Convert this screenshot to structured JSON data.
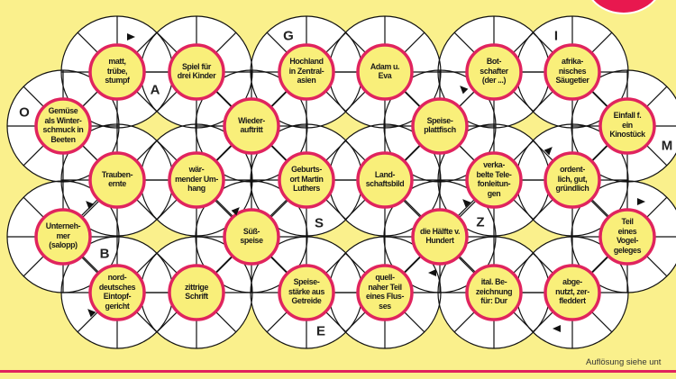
{
  "puzzle": {
    "type": "Wabenrätsel",
    "clues": [
      "matt,\ntrübe,\nstumpf",
      "Spiel für\ndrei Kinder",
      "Hochland\nin Zentral-\nasien",
      "Adam u.\nEva",
      "Bot-\nschafter\n(der ...)",
      "afrika-\nnisches\nSäugetier",
      "Gemüse\nals Winter-\nschmuck in\nBeeten",
      "Wieder-\nauftritt",
      "Speise-\nplattfisch",
      "Einfall f.\nein\nKinostück",
      "Trauben-\nernte",
      "wär-\nmender Um-\nhang",
      "Geburts-\nort Martin\nLuthers",
      "Land-\nschaftsbild",
      "verka-\nbelte Tele-\nfonleitun-\ngen",
      "ordent-\nlich, gut,\ngründlich",
      "Unterneh-\nmer\n(salopp)",
      "Süß-\nspeise",
      "die Hälfte v.\nHundert",
      "Teil\neines\nVogel-\ngeleges",
      "nord-\ndeutsches\nEintopf-\ngericht",
      "zittrige\nSchrift",
      "Speise-\nstärke aus\nGetreide",
      "quell-\nnaher Teil\neines Flus-\nses",
      "ital. Be-\nzeichnung\nfür: Dur",
      "abge-\nnutzt, zer-\nfleddert"
    ],
    "solution_letters": [
      "O",
      "A",
      "G",
      "I",
      "M",
      "S",
      "B",
      "Z",
      "E"
    ]
  },
  "footer": {
    "note": "Auflösung siehe unt"
  },
  "colors": {
    "background": "#faf08c",
    "ring": "#e0245e",
    "clue_fill": "#f9ef7a",
    "cell": "#ffffff"
  }
}
